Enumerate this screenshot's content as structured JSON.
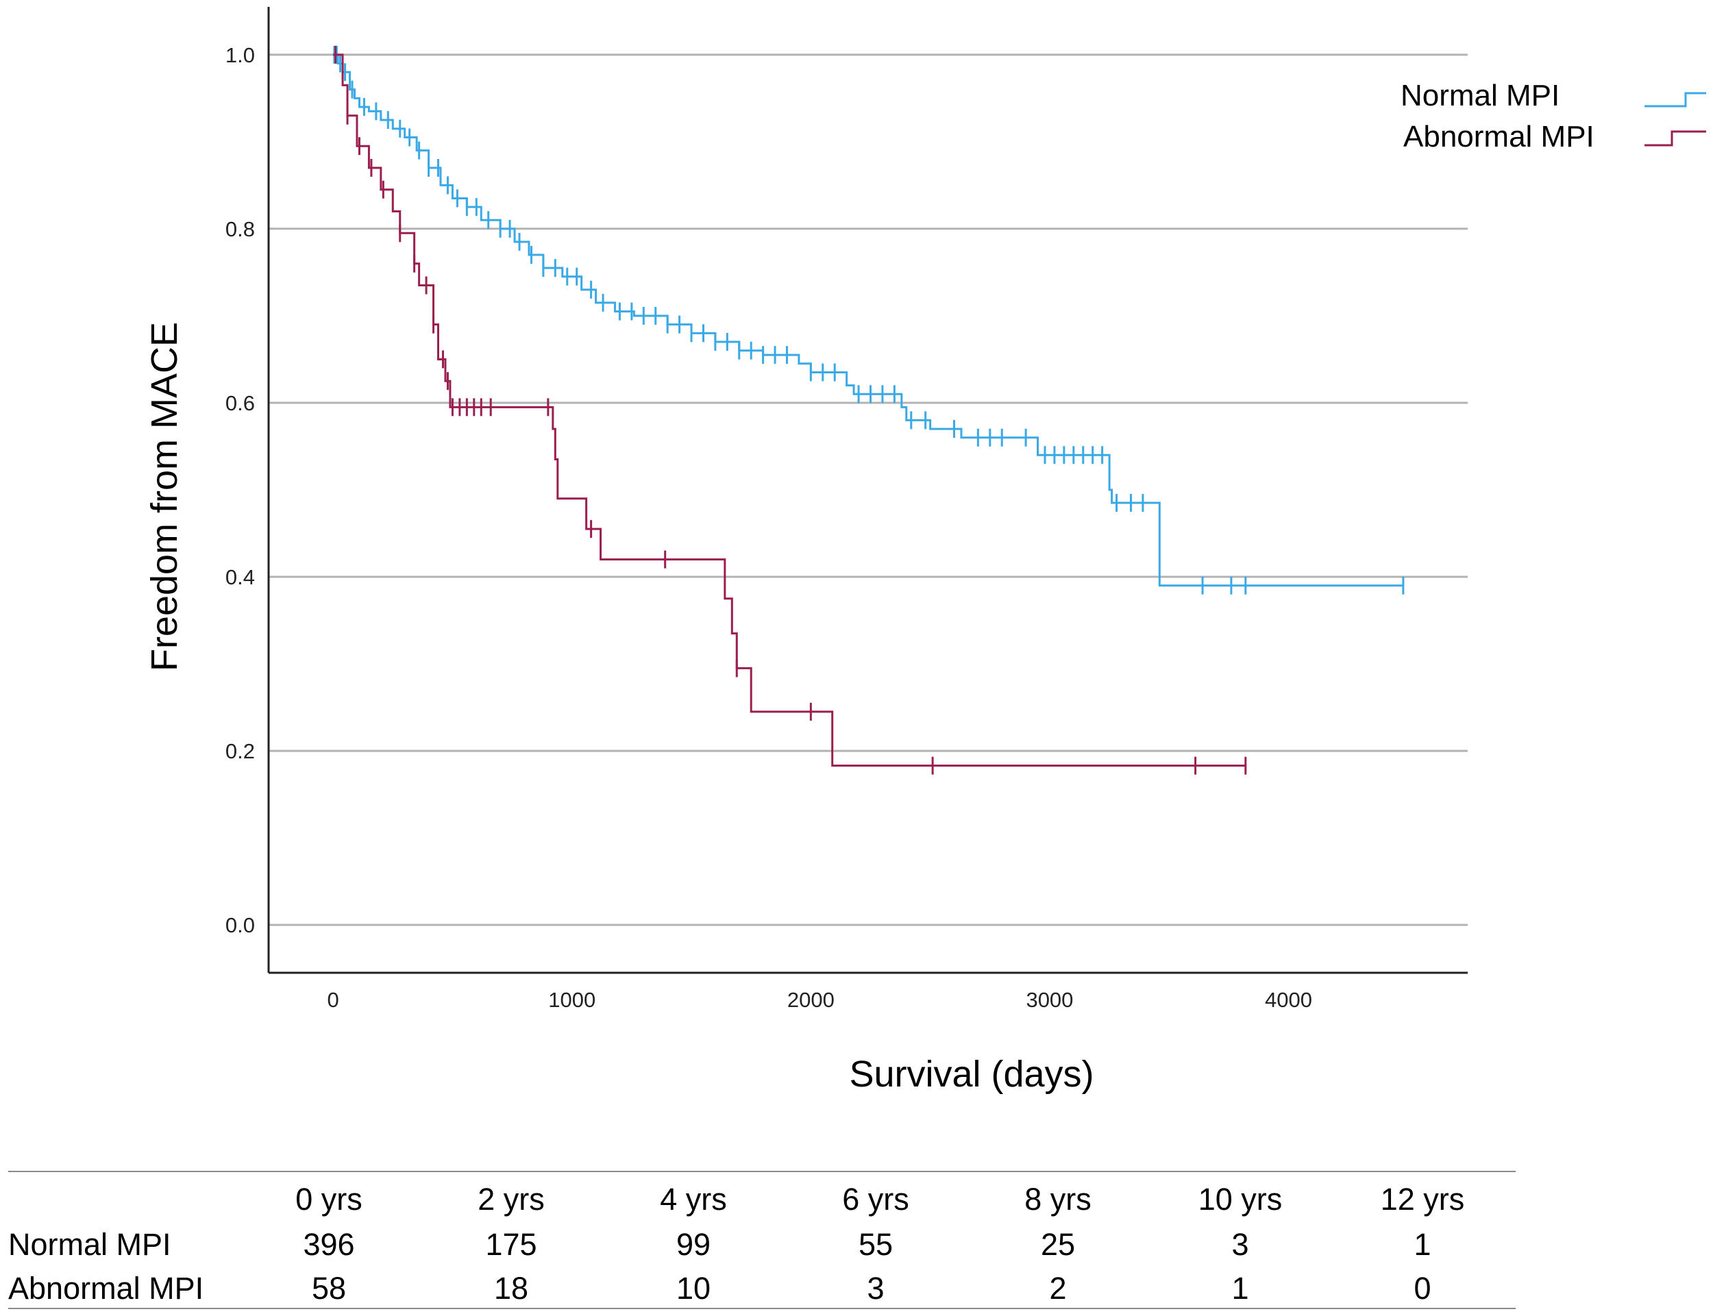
{
  "chart_data": {
    "type": "line",
    "subtype": "kaplan-meier step",
    "xlabel": "Survival (days)",
    "ylabel": "Freedom from MACE",
    "xlim": [
      -270,
      4750
    ],
    "ylim": [
      -0.055,
      1.055
    ],
    "x_ticks": [
      0,
      1000,
      2000,
      3000,
      4000
    ],
    "y_ticks": [
      "0.0",
      "0.2",
      "0.4",
      "0.6",
      "0.8",
      "1.0"
    ],
    "grid": "horizontal",
    "legend_position": "top-right",
    "series": [
      {
        "name": "Normal MPI",
        "color": "#3aa9e5",
        "steps": [
          [
            0,
            1.0
          ],
          [
            20,
            0.99
          ],
          [
            40,
            0.98
          ],
          [
            70,
            0.96
          ],
          [
            90,
            0.95
          ],
          [
            110,
            0.94
          ],
          [
            150,
            0.935
          ],
          [
            200,
            0.925
          ],
          [
            250,
            0.915
          ],
          [
            300,
            0.905
          ],
          [
            350,
            0.89
          ],
          [
            400,
            0.87
          ],
          [
            450,
            0.85
          ],
          [
            500,
            0.835
          ],
          [
            560,
            0.825
          ],
          [
            620,
            0.81
          ],
          [
            700,
            0.8
          ],
          [
            760,
            0.785
          ],
          [
            820,
            0.77
          ],
          [
            880,
            0.755
          ],
          [
            960,
            0.745
          ],
          [
            1040,
            0.73
          ],
          [
            1100,
            0.715
          ],
          [
            1180,
            0.705
          ],
          [
            1260,
            0.7
          ],
          [
            1400,
            0.69
          ],
          [
            1500,
            0.68
          ],
          [
            1600,
            0.67
          ],
          [
            1700,
            0.66
          ],
          [
            1800,
            0.655
          ],
          [
            1950,
            0.645
          ],
          [
            2000,
            0.635
          ],
          [
            2150,
            0.62
          ],
          [
            2180,
            0.61
          ],
          [
            2380,
            0.595
          ],
          [
            2400,
            0.58
          ],
          [
            2500,
            0.57
          ],
          [
            2630,
            0.56
          ],
          [
            2950,
            0.54
          ],
          [
            3250,
            0.5
          ],
          [
            3260,
            0.485
          ],
          [
            3460,
            0.39
          ],
          [
            4480,
            0.39
          ]
        ],
        "censored_x": [
          5,
          15,
          30,
          50,
          80,
          130,
          180,
          230,
          280,
          320,
          360,
          400,
          440,
          480,
          520,
          560,
          600,
          650,
          700,
          740,
          780,
          830,
          880,
          930,
          980,
          1020,
          1080,
          1130,
          1200,
          1250,
          1300,
          1350,
          1400,
          1450,
          1500,
          1550,
          1600,
          1650,
          1700,
          1750,
          1800,
          1850,
          1900,
          2000,
          2050,
          2100,
          2200,
          2250,
          2300,
          2350,
          2420,
          2480,
          2600,
          2700,
          2750,
          2800,
          2900,
          2980,
          3020,
          3060,
          3100,
          3140,
          3180,
          3220,
          3280,
          3340,
          3390,
          3640,
          3760,
          3820,
          4480
        ]
      },
      {
        "name": "Abnormal MPI",
        "color": "#9a1f4f",
        "steps": [
          [
            0,
            1.0
          ],
          [
            40,
            0.965
          ],
          [
            60,
            0.93
          ],
          [
            100,
            0.895
          ],
          [
            150,
            0.87
          ],
          [
            200,
            0.845
          ],
          [
            250,
            0.82
          ],
          [
            280,
            0.795
          ],
          [
            340,
            0.76
          ],
          [
            360,
            0.735
          ],
          [
            420,
            0.69
          ],
          [
            440,
            0.65
          ],
          [
            470,
            0.625
          ],
          [
            490,
            0.595
          ],
          [
            920,
            0.57
          ],
          [
            930,
            0.535
          ],
          [
            940,
            0.49
          ],
          [
            1060,
            0.455
          ],
          [
            1120,
            0.42
          ],
          [
            1640,
            0.375
          ],
          [
            1670,
            0.335
          ],
          [
            1690,
            0.295
          ],
          [
            1750,
            0.245
          ],
          [
            2090,
            0.183
          ],
          [
            3820,
            0.183
          ]
        ],
        "censored_x": [
          10,
          60,
          110,
          160,
          210,
          280,
          340,
          390,
          420,
          460,
          480,
          500,
          530,
          560,
          590,
          620,
          660,
          900,
          1080,
          1390,
          1690,
          2000,
          2510,
          3610,
          3820
        ]
      }
    ]
  },
  "risk_table": {
    "headers": [
      "0 yrs",
      "2 yrs",
      "4 yrs",
      "6 yrs",
      "8 yrs",
      "10 yrs",
      "12 yrs"
    ],
    "rows": [
      {
        "label": "Normal MPI",
        "values": [
          "396",
          "175",
          "99",
          "55",
          "25",
          "3",
          "1"
        ]
      },
      {
        "label": "Abnormal MPI",
        "values": [
          "58",
          "18",
          "10",
          "3",
          "2",
          "1",
          "0"
        ]
      }
    ]
  }
}
